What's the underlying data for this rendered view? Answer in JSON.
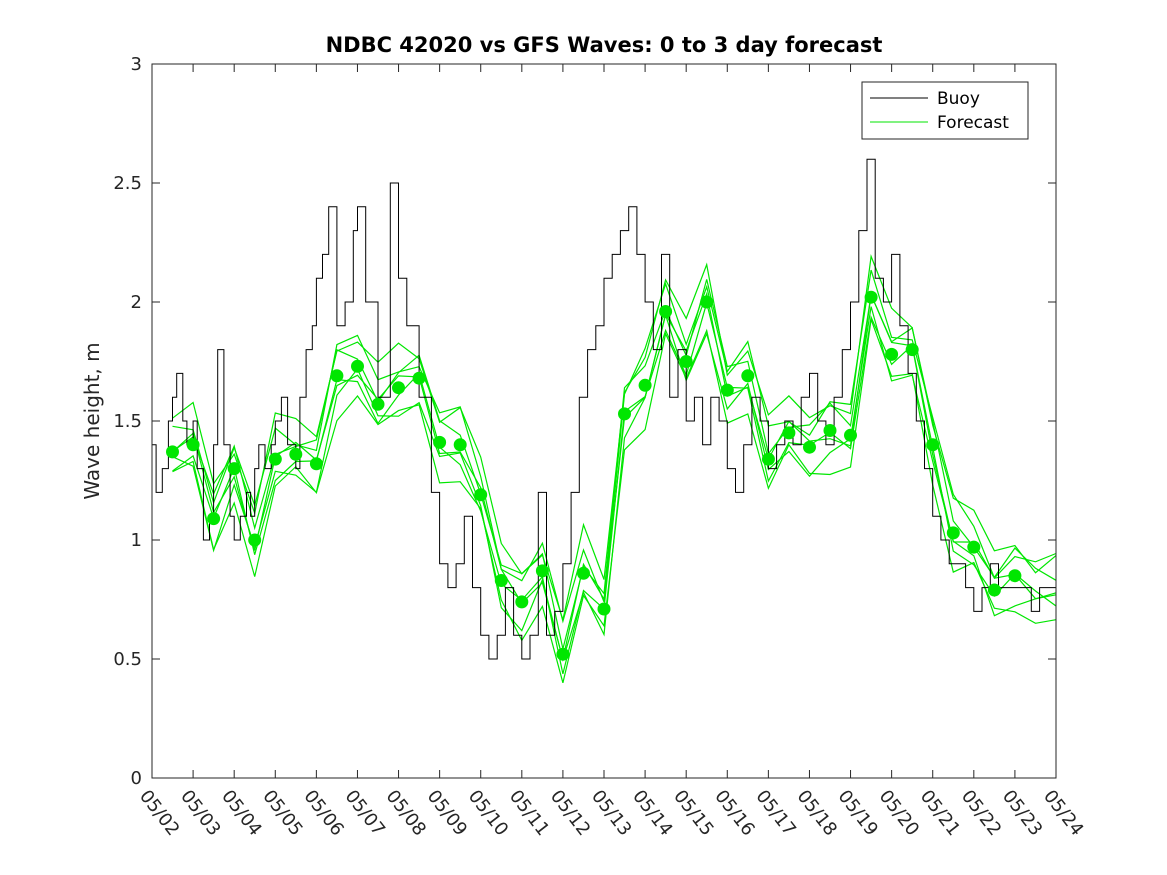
{
  "chart_data": {
    "type": "line",
    "title": "NDBC 42020 vs GFS Waves: 0 to 3 day forecast",
    "xlabel": "",
    "ylabel": "Wave height, m",
    "ylim": [
      0,
      3
    ],
    "xlim": [
      "05/02",
      "05/24"
    ],
    "yticks": [
      "0",
      "0.5",
      "1",
      "1.5",
      "2",
      "2.5",
      "3"
    ],
    "xticks": [
      "05/02",
      "05/03",
      "05/04",
      "05/05",
      "05/06",
      "05/07",
      "05/08",
      "05/09",
      "05/10",
      "05/11",
      "05/12",
      "05/13",
      "05/14",
      "05/15",
      "05/16",
      "05/17",
      "05/18",
      "05/19",
      "05/20",
      "05/21",
      "05/22",
      "05/23",
      "05/24"
    ],
    "grid": false,
    "legend": {
      "placement": "top-right",
      "entries": [
        "Buoy",
        "Forecast"
      ]
    },
    "colors": {
      "buoy": "#000000",
      "forecast": "#00e600"
    },
    "series": [
      {
        "name": "Buoy",
        "x_day": [
          0,
          0.1,
          0.25,
          0.4,
          0.5,
          0.6,
          0.75,
          0.85,
          1.0,
          1.1,
          1.25,
          1.4,
          1.5,
          1.6,
          1.75,
          1.9,
          2.0,
          2.15,
          2.3,
          2.4,
          2.5,
          2.6,
          2.75,
          2.9,
          3.0,
          3.15,
          3.3,
          3.5,
          3.6,
          3.75,
          3.9,
          4.0,
          4.15,
          4.3,
          4.5,
          4.7,
          4.9,
          5.0,
          5.2,
          5.5,
          5.8,
          6.0,
          6.2,
          6.5,
          6.8,
          7.0,
          7.2,
          7.4,
          7.6,
          7.8,
          8.0,
          8.2,
          8.4,
          8.6,
          8.8,
          9.0,
          9.2,
          9.4,
          9.6,
          9.8,
          10.0,
          10.2,
          10.4,
          10.6,
          10.8,
          11.0,
          11.2,
          11.4,
          11.6,
          11.8,
          12.0,
          12.2,
          12.4,
          12.6,
          12.8,
          13.0,
          13.2,
          13.4,
          13.6,
          13.8,
          14.0,
          14.2,
          14.4,
          14.6,
          14.8,
          15.0,
          15.2,
          15.4,
          15.6,
          15.8,
          16.0,
          16.2,
          16.4,
          16.6,
          16.8,
          17.0,
          17.2,
          17.4,
          17.6,
          17.8,
          18.0,
          18.2,
          18.4,
          18.6,
          18.8,
          19.0,
          19.2,
          19.4,
          19.6,
          19.8,
          20.0,
          20.2,
          20.4,
          20.6,
          20.8,
          21.0,
          21.2,
          21.4,
          21.6,
          21.8,
          22.0
        ],
        "values": [
          1.4,
          1.2,
          1.3,
          1.5,
          1.6,
          1.7,
          1.5,
          1.4,
          1.5,
          1.3,
          1.0,
          1.1,
          1.4,
          1.8,
          1.4,
          1.1,
          1.0,
          1.1,
          1.2,
          1.1,
          1.3,
          1.4,
          1.3,
          1.4,
          1.5,
          1.6,
          1.4,
          1.3,
          1.6,
          1.8,
          1.9,
          2.1,
          2.2,
          2.4,
          1.9,
          2.0,
          2.3,
          2.4,
          2.0,
          1.6,
          2.5,
          2.1,
          1.9,
          1.6,
          1.2,
          0.9,
          0.8,
          0.9,
          1.1,
          0.8,
          0.6,
          0.5,
          0.6,
          0.8,
          0.6,
          0.5,
          0.6,
          1.2,
          0.6,
          0.7,
          0.9,
          1.2,
          1.6,
          1.8,
          1.9,
          2.1,
          2.2,
          2.3,
          2.4,
          2.2,
          2.0,
          1.8,
          2.2,
          1.6,
          1.8,
          1.5,
          1.6,
          1.4,
          1.6,
          1.5,
          1.3,
          1.2,
          1.4,
          1.6,
          1.5,
          1.3,
          1.4,
          1.5,
          1.4,
          1.6,
          1.7,
          1.5,
          1.4,
          1.6,
          1.8,
          2.0,
          2.3,
          2.6,
          2.1,
          2.0,
          2.2,
          1.9,
          1.7,
          1.5,
          1.3,
          1.1,
          1.0,
          0.9,
          0.9,
          0.8,
          0.7,
          0.8,
          0.9,
          0.8,
          0.8,
          0.8,
          0.8,
          0.7,
          0.8,
          0.8,
          0.8
        ]
      },
      {
        "name": "Forecast",
        "note_runs": 7,
        "x_day": [
          0.5,
          1.0,
          1.5,
          2.0,
          2.5,
          3.0,
          3.5,
          4.0,
          4.5,
          5.0,
          5.5,
          6.0,
          6.5,
          7.0,
          7.5,
          8.0,
          8.5,
          9.0,
          9.5,
          10.0,
          10.5,
          11.0,
          11.5,
          12.0,
          12.5,
          13.0,
          13.5,
          14.0,
          14.5,
          15.0,
          15.5,
          16.0,
          16.5,
          17.0,
          17.5,
          18.0,
          18.5,
          19.0,
          19.5,
          20.0,
          20.5,
          21.0,
          21.5,
          22.0
        ],
        "values": [
          1.37,
          1.4,
          1.09,
          1.3,
          1.0,
          1.34,
          1.36,
          1.32,
          1.69,
          1.73,
          1.57,
          1.64,
          1.68,
          1.41,
          1.4,
          1.19,
          0.83,
          0.74,
          0.87,
          0.52,
          0.86,
          0.71,
          1.53,
          1.65,
          1.96,
          1.75,
          2.0,
          1.63,
          1.69,
          1.34,
          1.45,
          1.39,
          1.46,
          1.44,
          2.02,
          1.78,
          1.8,
          1.4,
          1.03,
          0.97,
          0.79,
          0.85,
          0.8,
          0.8
        ]
      }
    ],
    "markers": {
      "name": "Forecast",
      "x_day": [
        0.5,
        1.0,
        1.5,
        2.0,
        2.5,
        3.0,
        3.5,
        4.0,
        4.5,
        5.0,
        5.5,
        6.0,
        6.5,
        7.0,
        7.5,
        8.0,
        8.5,
        9.0,
        9.5,
        10.0,
        10.5,
        11.0,
        11.5,
        12.0,
        12.5,
        13.0,
        13.5,
        14.0,
        14.5,
        15.0,
        15.5,
        16.0,
        16.5,
        17.0,
        17.5,
        18.0,
        18.5,
        19.0,
        19.5,
        20.0,
        20.5,
        21.0
      ],
      "values": [
        1.37,
        1.4,
        1.09,
        1.3,
        1.0,
        1.34,
        1.36,
        1.32,
        1.69,
        1.73,
        1.57,
        1.64,
        1.68,
        1.41,
        1.4,
        1.19,
        0.83,
        0.74,
        0.87,
        0.52,
        0.86,
        0.71,
        1.53,
        1.65,
        1.96,
        1.75,
        2.0,
        1.63,
        1.69,
        1.34,
        1.45,
        1.39,
        1.46,
        1.44,
        2.02,
        1.78,
        1.8,
        1.4,
        1.03,
        0.97,
        0.79,
        0.85
      ]
    }
  }
}
